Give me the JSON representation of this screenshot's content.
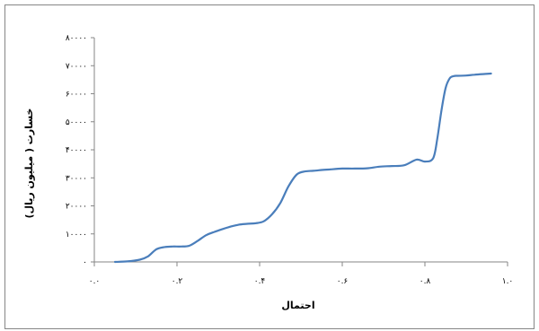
{
  "chart_data": {
    "type": "line",
    "xlabel": "احتمال",
    "ylabel": "خسارت ( میلیون ریال)",
    "xlim": [
      0,
      1.0
    ],
    "ylim": [
      0,
      80000
    ],
    "x_ticks": [
      0,
      0.2,
      0.4,
      0.6,
      0.8,
      1.0
    ],
    "x_tick_labels": [
      "۰.۰",
      "۰.۲",
      "۰.۴",
      "۰.۶",
      "۰.۸",
      "۱.۰"
    ],
    "y_ticks": [
      0,
      10000,
      20000,
      30000,
      40000,
      50000,
      60000,
      70000,
      80000
    ],
    "y_tick_labels": [
      "۰",
      "۱۰۰۰۰",
      "۲۰۰۰۰",
      "۳۰۰۰۰",
      "۴۰۰۰۰",
      "۵۰۰۰۰",
      "۶۰۰۰۰",
      "۷۰۰۰۰",
      "۸۰۰۰۰"
    ],
    "grid": false,
    "legend": "none",
    "series": [
      {
        "color": "#4a7ebb",
        "x": [
          0.05,
          0.08,
          0.11,
          0.13,
          0.15,
          0.17,
          0.19,
          0.21,
          0.23,
          0.25,
          0.27,
          0.29,
          0.31,
          0.33,
          0.35,
          0.37,
          0.39,
          0.41,
          0.43,
          0.45,
          0.47,
          0.49,
          0.51,
          0.53,
          0.55,
          0.57,
          0.6,
          0.63,
          0.66,
          0.69,
          0.72,
          0.75,
          0.78,
          0.8,
          0.82,
          0.83,
          0.84,
          0.85,
          0.86,
          0.87,
          0.88,
          0.9,
          0.92,
          0.94,
          0.96
        ],
        "y": [
          0,
          200,
          800,
          2000,
          4500,
          5300,
          5500,
          5500,
          5800,
          7500,
          9500,
          10700,
          11700,
          12600,
          13300,
          13600,
          13800,
          14500,
          17000,
          21000,
          27000,
          31200,
          32300,
          32500,
          32800,
          33000,
          33300,
          33300,
          33400,
          34000,
          34200,
          34500,
          36500,
          35800,
          37000,
          44000,
          54000,
          62000,
          65500,
          66300,
          66400,
          66500,
          66800,
          67000,
          67200
        ]
      }
    ]
  }
}
